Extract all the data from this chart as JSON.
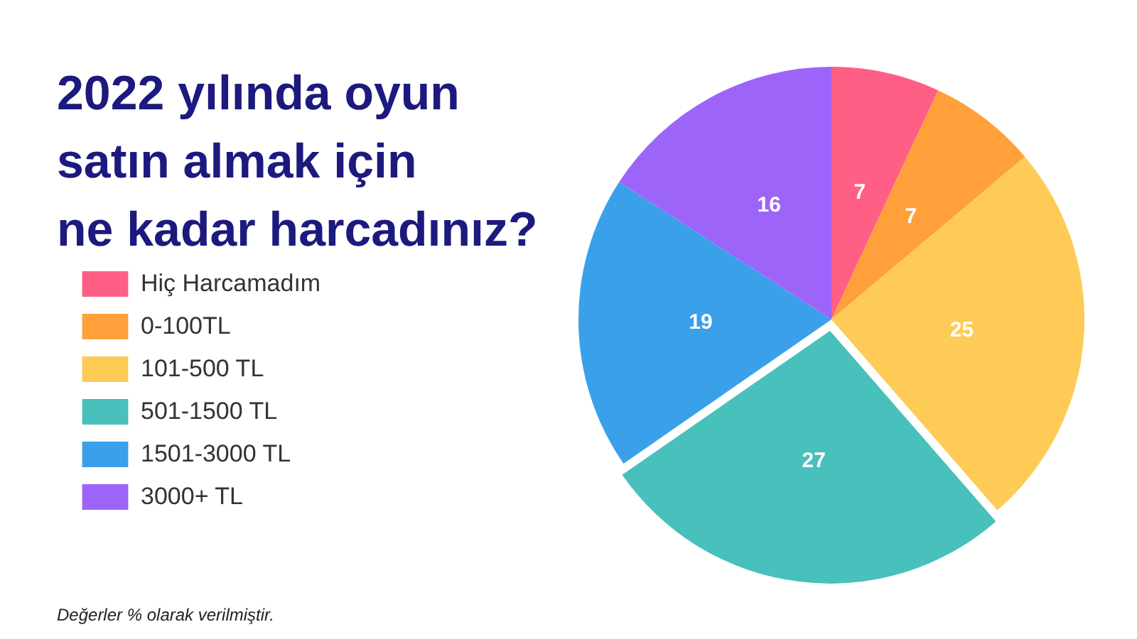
{
  "chart_data": {
    "type": "pie",
    "title": "2022 yılında oyun satın almak için ne kadar harcadınız?",
    "categories": [
      "Hiç Harcamadım",
      "0-100TL",
      "101-500 TL",
      "501-1500 TL",
      "1501-3000 TL",
      "3000+ TL"
    ],
    "values": [
      7,
      7,
      25,
      27,
      19,
      16
    ],
    "colors": [
      "#ff5f85",
      "#ffa03a",
      "#fecb57",
      "#48c0bc",
      "#3aa0ea",
      "#9c64f8"
    ],
    "data_labels": true,
    "legend": "left",
    "annotations": [
      "Değerler % olarak verilmiştir."
    ]
  }
}
